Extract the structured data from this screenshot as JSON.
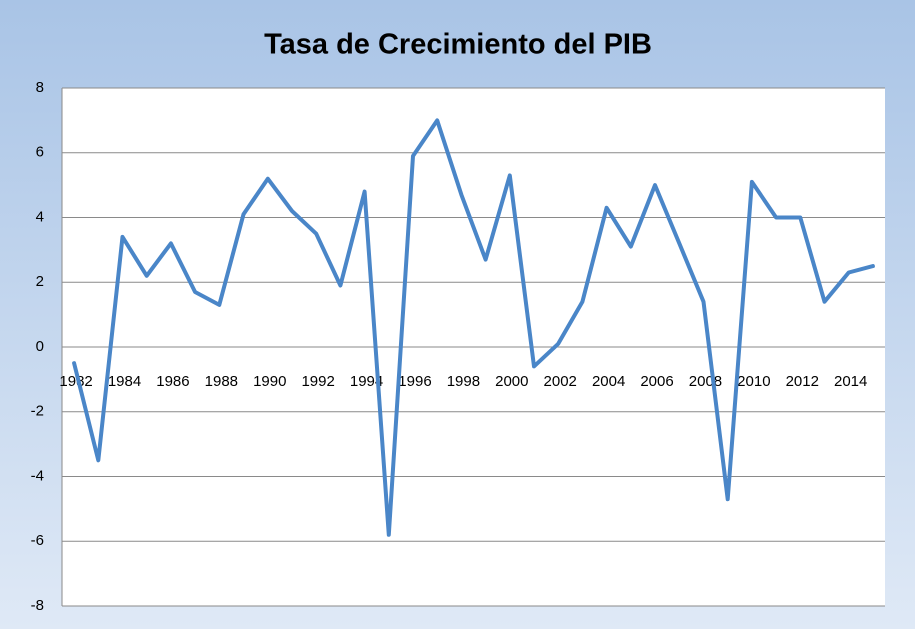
{
  "chart_data": {
    "type": "line",
    "title": "Tasa de Crecimiento del PIB",
    "categories": [
      "1982",
      null,
      "1984",
      null,
      "1986",
      null,
      "1988",
      null,
      "1990",
      null,
      "1992",
      null,
      "1994",
      null,
      "1996",
      null,
      "1998",
      null,
      "2000",
      null,
      "2002",
      null,
      "2004",
      null,
      "2006",
      null,
      "2008",
      null,
      "2010",
      null,
      "2012",
      null,
      "2014",
      null
    ],
    "values": [
      -0.5,
      -3.5,
      3.4,
      2.2,
      3.2,
      1.7,
      1.3,
      4.1,
      5.2,
      4.2,
      3.5,
      1.9,
      4.8,
      -5.8,
      5.9,
      7.0,
      4.7,
      2.7,
      5.3,
      -0.6,
      0.1,
      1.4,
      4.3,
      3.1,
      5.0,
      3.2,
      1.4,
      -4.7,
      5.1,
      4.0,
      4.0,
      1.4,
      2.3,
      2.5
    ],
    "color": "#4a86c8",
    "ylim": [
      -8,
      8
    ],
    "yticks": [
      -8,
      -6,
      -4,
      -2,
      0,
      2,
      4,
      6,
      8
    ],
    "grid": true
  }
}
